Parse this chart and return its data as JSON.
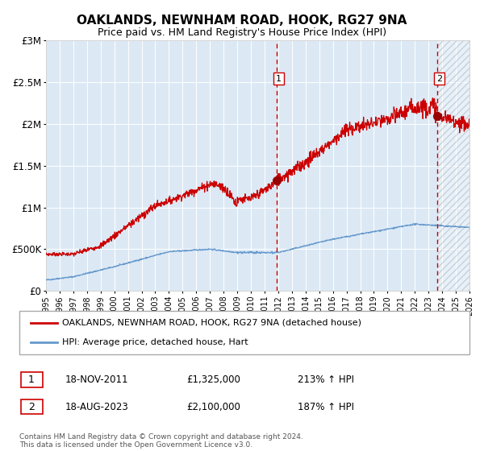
{
  "title": "OAKLANDS, NEWNHAM ROAD, HOOK, RG27 9NA",
  "subtitle": "Price paid vs. HM Land Registry's House Price Index (HPI)",
  "legend_line1": "OAKLANDS, NEWNHAM ROAD, HOOK, RG27 9NA (detached house)",
  "legend_line2": "HPI: Average price, detached house, Hart",
  "annotation1": {
    "label": "1",
    "date": "18-NOV-2011",
    "price": "£1,325,000",
    "hpi": "213% ↑ HPI"
  },
  "annotation2": {
    "label": "2",
    "date": "18-AUG-2023",
    "price": "£2,100,000",
    "hpi": "187% ↑ HPI"
  },
  "footer": "Contains HM Land Registry data © Crown copyright and database right 2024.\nThis data is licensed under the Open Government Licence v3.0.",
  "red_line_color": "#cc0000",
  "blue_line_color": "#6699cc",
  "dot_color": "#990000",
  "bg_color": "#dce9f5",
  "hatch_color": "#b0bdd0",
  "vline_color": "#cc0000",
  "grid_color": "#ffffff",
  "ylim": [
    0,
    3000000
  ],
  "yticks": [
    0,
    500000,
    1000000,
    1500000,
    2000000,
    2500000,
    3000000
  ],
  "ytick_labels": [
    "£0",
    "£500K",
    "£1M",
    "£1.5M",
    "£2M",
    "£2.5M",
    "£3M"
  ],
  "sale1_x": 2011.88,
  "sale1_y": 1325000,
  "sale2_x": 2023.63,
  "sale2_y": 2100000,
  "xmin": 1995,
  "xmax": 2026
}
